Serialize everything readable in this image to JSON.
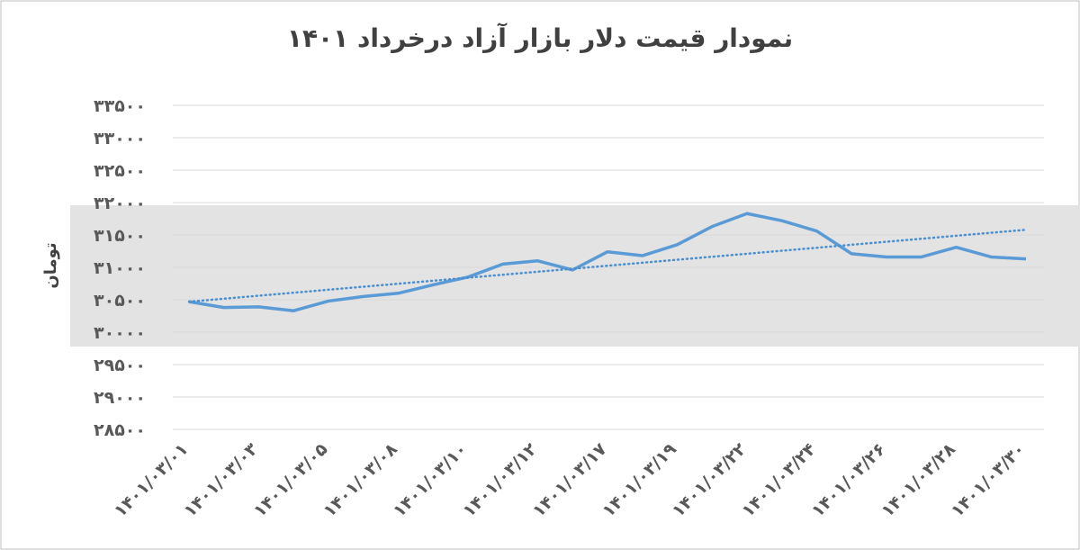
{
  "chart_data": {
    "type": "line",
    "title": "نمودار قیمت دلار بازار آزاد درخرداد ۱۴۰۱",
    "y_label": "تومان",
    "categories": [
      "۱۴۰۱/۰۳/۰۱",
      null,
      "۱۴۰۱/۰۳/۰۳",
      null,
      "۱۴۰۱/۰۳/۰۵",
      null,
      "۱۴۰۱/۰۳/۰۸",
      null,
      "۱۴۰۱/۰۳/۱۰",
      null,
      "۱۴۰۱/۰۳/۱۲",
      null,
      "۱۴۰۱/۰۳/۱۷",
      null,
      "۱۴۰۱/۰۳/۱۹",
      null,
      "۱۴۰۱/۰۳/۲۲",
      null,
      "۱۴۰۱/۰۳/۲۴",
      null,
      "۱۴۰۱/۰۳/۲۶",
      null,
      "۱۴۰۱/۰۳/۲۸",
      null,
      "۱۴۰۱/۰۳/۳۰"
    ],
    "values": [
      30470,
      30380,
      30390,
      30330,
      30480,
      30550,
      30600,
      30730,
      30850,
      31050,
      31100,
      30960,
      31240,
      31180,
      31350,
      31630,
      31830,
      31720,
      31560,
      31210,
      31160,
      31160,
      31310,
      31160,
      31130
    ],
    "color": "#5b9bd5",
    "trendline": {
      "color": "#4a8fd0",
      "values": [
        30470,
        31580
      ]
    },
    "ylim": [
      28500,
      33500
    ],
    "yticks": [
      {
        "value": 28500,
        "label": "۲۸۵۰۰"
      },
      {
        "value": 29000,
        "label": "۲۹۰۰۰"
      },
      {
        "value": 29500,
        "label": "۲۹۵۰۰"
      },
      {
        "value": 30000,
        "label": "۳۰۰۰۰"
      },
      {
        "value": 30500,
        "label": "۳۰۵۰۰"
      },
      {
        "value": 31000,
        "label": "۳۱۰۰۰"
      },
      {
        "value": 31500,
        "label": "۳۱۵۰۰"
      },
      {
        "value": 32000,
        "label": "۳۲۰۰۰"
      },
      {
        "value": 32500,
        "label": "۳۲۵۰۰"
      },
      {
        "value": 33000,
        "label": "۳۳۰۰۰"
      },
      {
        "value": 33500,
        "label": "۳۳۵۰۰"
      }
    ],
    "grid": true
  }
}
